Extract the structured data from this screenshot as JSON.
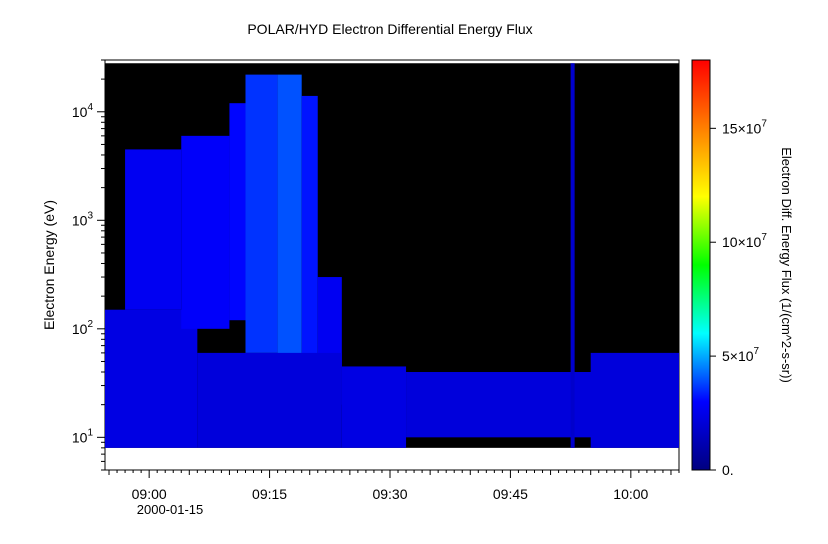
{
  "chart_data": {
    "type": "heatmap",
    "title": "POLAR/HYD  Electron Differential Energy Flux",
    "ylabel": "Electron Energy (eV)",
    "colorbar_label": "Electron Diff. Energy Flux (1/(cm^2-s-sr))",
    "x_tick_labels": [
      "09:00",
      "09:15",
      "09:30",
      "09:45",
      "10:00"
    ],
    "x_ticks_minutes": [
      0,
      15,
      30,
      45,
      60
    ],
    "date_label": "2000-01-15",
    "xlim_minutes": [
      -5.5,
      66
    ],
    "y_scale": "log",
    "ylim": [
      5,
      30000
    ],
    "y_ticks": [
      {
        "value": 10,
        "base": "10",
        "exp": "1"
      },
      {
        "value": 100,
        "base": "10",
        "exp": "2"
      },
      {
        "value": 1000,
        "base": "10",
        "exp": "3"
      },
      {
        "value": 10000,
        "base": "10",
        "exp": "4"
      }
    ],
    "data_energy_range": [
      8,
      28000
    ],
    "colorbar_range": [
      0,
      180000000
    ],
    "colorbar_ticks": [
      {
        "value": 0,
        "label": "0.",
        "base": "",
        "exp": ""
      },
      {
        "value": 50000000,
        "label": "",
        "base": "5×10",
        "exp": "7"
      },
      {
        "value": 100000000,
        "label": "",
        "base": "10×10",
        "exp": "7"
      },
      {
        "value": 150000000,
        "label": "",
        "base": "15×10",
        "exp": "7"
      }
    ],
    "colormap": [
      "#000080",
      "#0000ff",
      "#00ffff",
      "#00ff00",
      "#ffff00",
      "#ff8000",
      "#ff0000"
    ],
    "background_color": "#000000",
    "flux_regions": [
      {
        "t_start": -5.5,
        "t_end": 6,
        "e_low": 8,
        "e_high": 150,
        "level": 0.13
      },
      {
        "t_start": -3,
        "t_end": 4,
        "e_low": 150,
        "e_high": 4500,
        "level": 0.15
      },
      {
        "t_start": 4,
        "t_end": 10,
        "e_low": 100,
        "e_high": 6000,
        "level": 0.16
      },
      {
        "t_start": 10,
        "t_end": 12,
        "e_low": 120,
        "e_high": 12000,
        "level": 0.17
      },
      {
        "t_start": 12,
        "t_end": 16,
        "e_low": 60,
        "e_high": 22000,
        "level": 0.2
      },
      {
        "t_start": 16,
        "t_end": 19,
        "e_low": 15,
        "e_high": 22000,
        "level": 0.22
      },
      {
        "t_start": 19,
        "t_end": 21,
        "e_low": 40,
        "e_high": 14000,
        "level": 0.18
      },
      {
        "t_start": 21,
        "t_end": 24,
        "e_low": 20,
        "e_high": 300,
        "level": 0.15
      },
      {
        "t_start": 6,
        "t_end": 24,
        "e_low": 8,
        "e_high": 60,
        "level": 0.12
      },
      {
        "t_start": 24,
        "t_end": 32,
        "e_low": 8,
        "e_high": 45,
        "level": 0.13
      },
      {
        "t_start": 32,
        "t_end": 66,
        "e_low": 10,
        "e_high": 40,
        "level": 0.12
      },
      {
        "t_start": 55,
        "t_end": 66,
        "e_low": 8,
        "e_high": 60,
        "level": 0.12
      },
      {
        "t_start": 52.5,
        "t_end": 53,
        "e_low": 8,
        "e_high": 28000,
        "level": 0.1
      }
    ]
  }
}
